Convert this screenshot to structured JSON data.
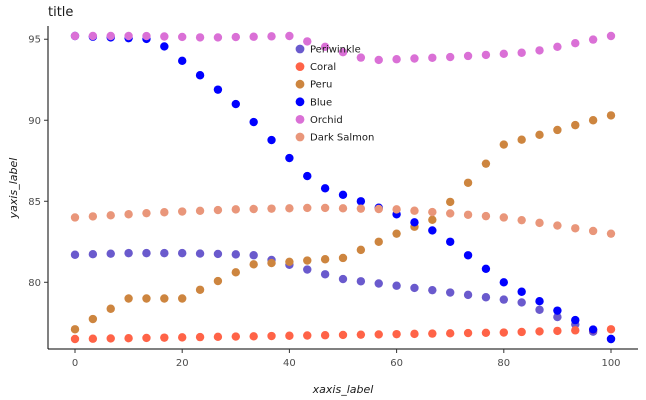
{
  "chart_data": {
    "type": "line",
    "title": "title",
    "xlabel": "xaxis_label",
    "ylabel": "yaxis_label",
    "xlim": [
      0,
      100
    ],
    "ylim": [
      76.5,
      95.2
    ],
    "x_ticks": [
      0,
      20,
      40,
      60,
      80,
      100
    ],
    "y_ticks": [
      80,
      85,
      90,
      95
    ],
    "grid": false,
    "legend_placement": "top-left",
    "series": [
      {
        "name": "Periwinkle",
        "color": "#6a5acd",
        "points": [
          [
            0,
            81.7
          ],
          [
            10,
            81.8
          ],
          [
            20,
            81.8
          ],
          [
            33,
            81.7
          ],
          [
            50,
            80.2
          ],
          [
            67,
            79.5
          ],
          [
            83,
            78.8
          ],
          [
            100,
            76.5
          ]
        ]
      },
      {
        "name": "Coral",
        "color": "#ff6347",
        "points": [
          [
            0,
            76.5
          ],
          [
            20,
            76.6
          ],
          [
            40,
            76.7
          ],
          [
            60,
            76.8
          ],
          [
            80,
            76.9
          ],
          [
            100,
            77.1
          ]
        ]
      },
      {
        "name": "Peru",
        "color": "#cd853f",
        "points": [
          [
            0,
            77.1
          ],
          [
            10,
            79.0
          ],
          [
            20,
            79.0
          ],
          [
            33,
            81.1
          ],
          [
            50,
            81.5
          ],
          [
            60,
            83.0
          ],
          [
            67,
            83.9
          ],
          [
            80,
            88.5
          ],
          [
            100,
            90.3
          ]
        ]
      },
      {
        "name": "Blue",
        "color": "#0000ff",
        "points": [
          [
            0,
            95.2
          ],
          [
            15,
            95.0
          ],
          [
            30,
            91.0
          ],
          [
            45,
            86.0
          ],
          [
            60,
            84.2
          ],
          [
            68,
            83.0
          ],
          [
            80,
            80.0
          ],
          [
            100,
            76.5
          ]
        ]
      },
      {
        "name": "Orchid",
        "color": "#da70d6",
        "points": [
          [
            0,
            95.2
          ],
          [
            13,
            95.2
          ],
          [
            25,
            95.1
          ],
          [
            40,
            95.2
          ],
          [
            55,
            93.7
          ],
          [
            70,
            93.9
          ],
          [
            85,
            94.2
          ],
          [
            100,
            95.2
          ]
        ]
      },
      {
        "name": "Dark Salmon",
        "color": "#e9967a",
        "points": [
          [
            0,
            84.0
          ],
          [
            15,
            84.3
          ],
          [
            30,
            84.5
          ],
          [
            45,
            84.6
          ],
          [
            60,
            84.5
          ],
          [
            80,
            84.0
          ],
          [
            100,
            83.0
          ]
        ]
      }
    ]
  }
}
